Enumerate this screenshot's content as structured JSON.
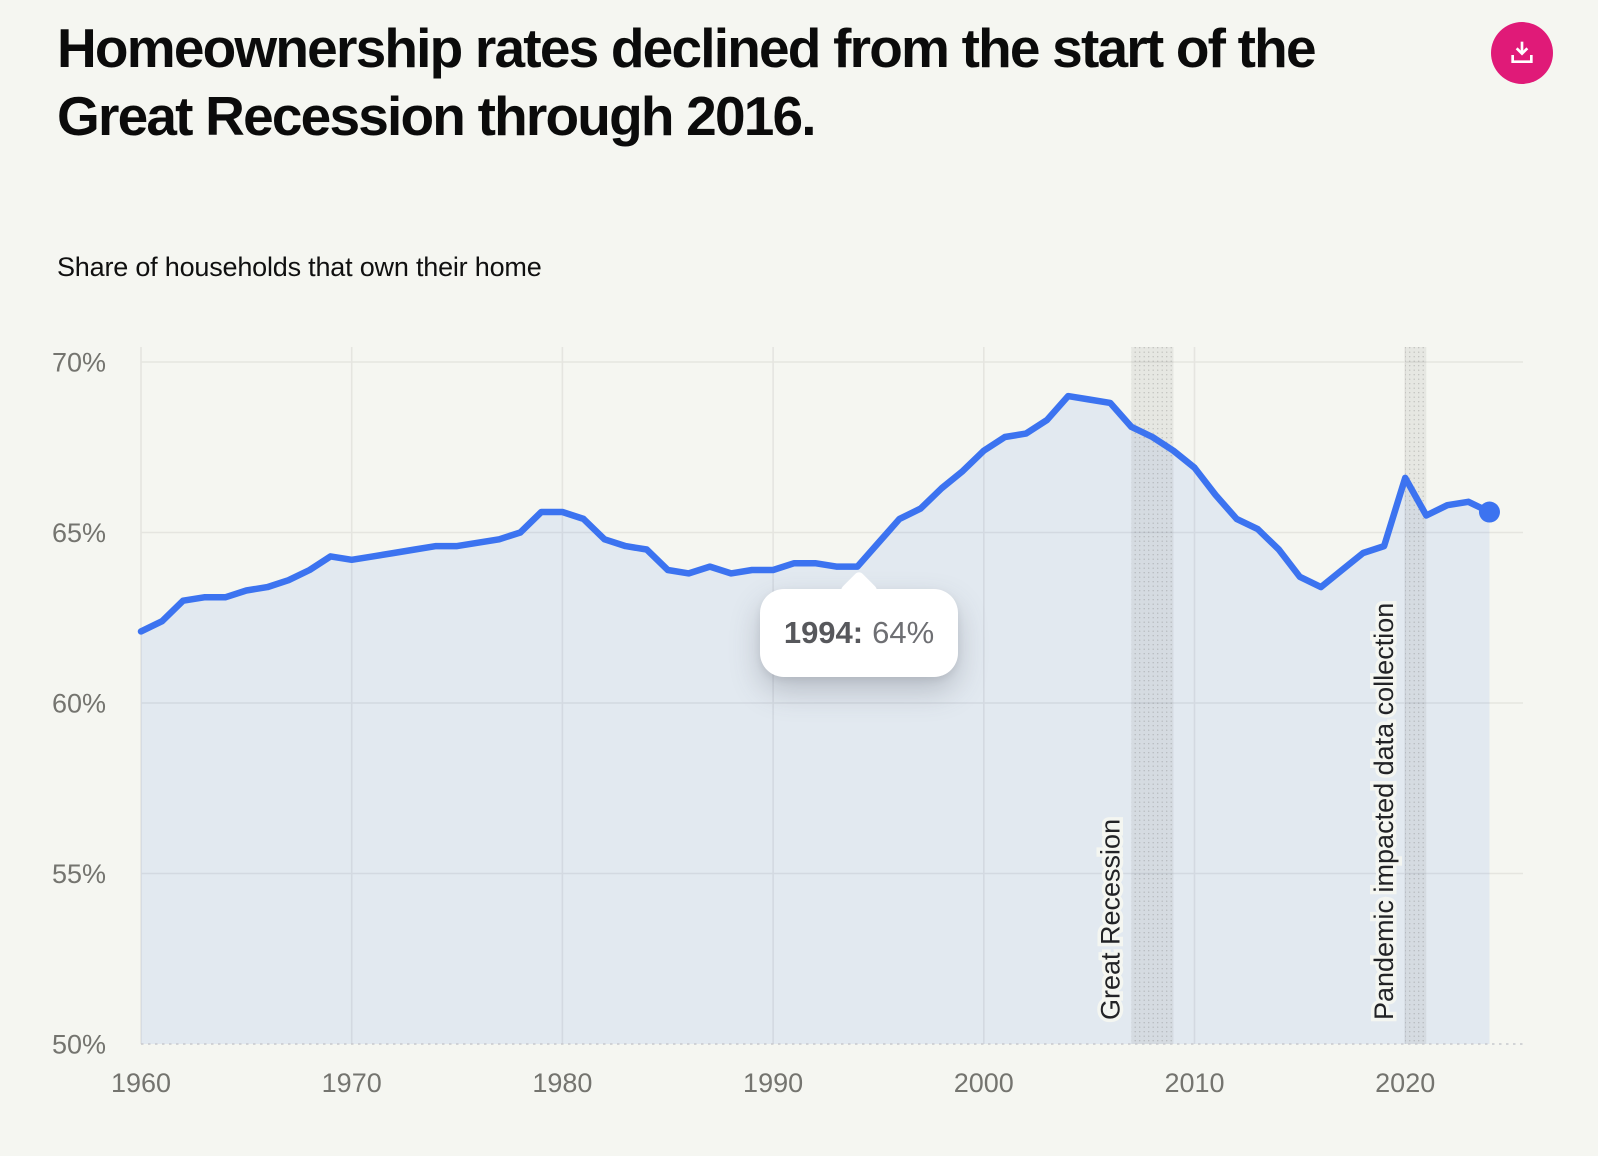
{
  "header": {
    "title": "Homeownership rates declined from the start of the Great Recession through 2016.",
    "download_button": "Download"
  },
  "colors": {
    "background": "#f5f6f1",
    "accent_pink": "#e01a78",
    "line_blue": "#3c73f0",
    "area_fill": "rgba(60,115,240,0.10)",
    "gridline": "#e5e5e0",
    "baseline_dashed": "#c7c8cd",
    "axis_label": "#74746f",
    "band_fill": "rgba(100,100,95,0.10)",
    "band_dots": "rgba(100,100,95,0.30)",
    "band_label": "#222326",
    "tooltip_year": "#57585c",
    "tooltip_value": "#6e6f73"
  },
  "chart_data": {
    "type": "area",
    "title": "Homeownership rates declined from the start of the Great Recession through 2016.",
    "subtitle": "Share of households that own their home",
    "xlabel": "",
    "ylabel": "Share of households that own their home",
    "ylim": [
      50,
      70
    ],
    "grid": true,
    "legend": "none",
    "x": [
      1960,
      1961,
      1962,
      1963,
      1964,
      1965,
      1966,
      1967,
      1968,
      1969,
      1970,
      1971,
      1972,
      1973,
      1974,
      1975,
      1976,
      1977,
      1978,
      1979,
      1980,
      1981,
      1982,
      1983,
      1984,
      1985,
      1986,
      1987,
      1988,
      1989,
      1990,
      1991,
      1992,
      1993,
      1994,
      1995,
      1996,
      1997,
      1998,
      1999,
      2000,
      2001,
      2002,
      2003,
      2004,
      2005,
      2006,
      2007,
      2008,
      2009,
      2010,
      2011,
      2012,
      2013,
      2014,
      2015,
      2016,
      2017,
      2018,
      2019,
      2020,
      2021,
      2022,
      2023,
      2024
    ],
    "values": [
      62.1,
      62.4,
      63.0,
      63.1,
      63.1,
      63.3,
      63.4,
      63.6,
      63.9,
      64.3,
      64.2,
      64.3,
      64.4,
      64.5,
      64.6,
      64.6,
      64.7,
      64.8,
      65.0,
      65.6,
      65.6,
      65.4,
      64.8,
      64.6,
      64.5,
      63.9,
      63.8,
      64.0,
      63.8,
      63.9,
      63.9,
      64.1,
      64.1,
      64.0,
      64.0,
      64.7,
      65.4,
      65.7,
      66.3,
      66.8,
      67.4,
      67.8,
      67.9,
      68.3,
      69.0,
      68.9,
      68.8,
      68.1,
      67.8,
      67.4,
      66.9,
      66.1,
      65.4,
      65.1,
      64.5,
      63.7,
      63.4,
      63.9,
      64.4,
      64.6,
      66.6,
      65.5,
      65.8,
      65.9,
      65.6
    ],
    "unit": "%",
    "yticks": [
      70,
      65,
      60,
      55,
      50
    ],
    "ytick_labels": [
      "70%",
      "65%",
      "60%",
      "55%",
      "50%"
    ],
    "xticks": [
      1960,
      1970,
      1980,
      1990,
      2000,
      2010,
      2020
    ],
    "xtick_labels": [
      "1960",
      "1970",
      "1980",
      "1990",
      "2000",
      "2010",
      "2020"
    ],
    "annotations": [
      {
        "label": "Great Recession",
        "year_start": 2007,
        "year_end": 2009
      },
      {
        "label": "Pandemic impacted data collection",
        "year_start": 2020,
        "year_end": 2021
      }
    ],
    "tooltip": {
      "year": 1994,
      "value": 64,
      "year_label": "1994:",
      "value_label": "64%"
    },
    "end_dot_year": 2024,
    "end_dot_value": 65.6
  }
}
